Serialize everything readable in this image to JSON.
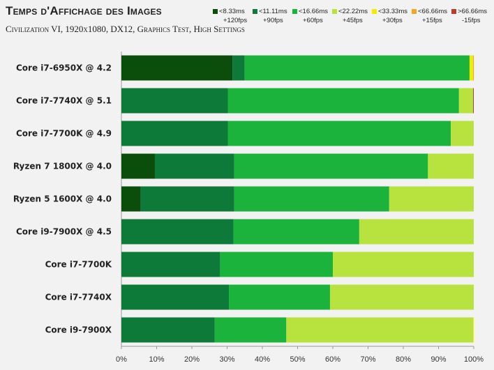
{
  "chart_data": {
    "type": "bar",
    "orientation": "horizontal",
    "stacked": true,
    "title": "Temps d'Affichage des Images",
    "subtitle": "Civilization VI, 1920x1080, DX12, Graphics Test, High Settings",
    "categories": [
      "Core i7-6950X @ 4.2",
      "Core i7-7740X @ 5.1",
      "Core i7-7700K @ 4.9",
      "Ryzen 7 1800X @ 4.0",
      "Ryzen 5 1600X @ 4.0",
      "Core i9-7900X @ 4.5",
      "Core i7-7700K",
      "Core i7-7740X",
      "Core i9-7900X"
    ],
    "series": [
      {
        "name": "<8.33ms +120fps",
        "color": "#0b4d0b",
        "values": [
          31.5,
          0,
          0,
          9.5,
          5.5,
          0,
          0,
          0,
          0
        ]
      },
      {
        "name": "<11.11ms +90fps",
        "color": "#0d7a3a",
        "values": [
          3.5,
          30.2,
          30.2,
          22.5,
          26.5,
          31.8,
          28.0,
          30.5,
          26.5
        ]
      },
      {
        "name": "<16.66ms +60fps",
        "color": "#1cb33c",
        "values": [
          63.8,
          65.6,
          63.3,
          55.0,
          44.0,
          35.7,
          32.0,
          28.7,
          20.3
        ]
      },
      {
        "name": "<22.22ms +45fps",
        "color": "#b8e23e",
        "values": [
          0,
          4.0,
          6.5,
          13.0,
          24.0,
          32.5,
          40.0,
          40.8,
          53.0
        ]
      },
      {
        "name": "<33.33ms +30fps",
        "color": "#f2ec00",
        "values": [
          1.0,
          0,
          0,
          0,
          0,
          0,
          0,
          0,
          0.2
        ]
      },
      {
        "name": "<66.66ms +15fps",
        "color": "#f5a623",
        "values": [
          0.2,
          0,
          0,
          0,
          0,
          0,
          0,
          0,
          0
        ]
      },
      {
        "name": ">66.66ms -15fps",
        "color": "#c0392b",
        "values": [
          0.0,
          0.2,
          0,
          0,
          0,
          0,
          0,
          0,
          0
        ]
      }
    ],
    "xticks": [
      "0%",
      "10%",
      "20%",
      "30%",
      "40%",
      "50%",
      "60%",
      "70%",
      "80%",
      "90%",
      "100%"
    ],
    "xlim": [
      0,
      100
    ],
    "legend_position": "top-right",
    "grid": false
  },
  "legend": [
    {
      "line1": "<8.33ms",
      "line2": "+120fps",
      "color": "#0b4d0b"
    },
    {
      "line1": "<11.11ms",
      "line2": "+90fps",
      "color": "#0d7a3a"
    },
    {
      "line1": "<16.66ms",
      "line2": "+60fps",
      "color": "#1cb33c"
    },
    {
      "line1": "<22.22ms",
      "line2": "+45fps",
      "color": "#b8e23e"
    },
    {
      "line1": "<33.33ms",
      "line2": "+30fps",
      "color": "#f2ec00"
    },
    {
      "line1": "<66.66ms",
      "line2": "+15fps",
      "color": "#f5a623"
    },
    {
      "line1": ">66.66ms",
      "line2": "-15fps",
      "color": "#c0392b"
    }
  ]
}
